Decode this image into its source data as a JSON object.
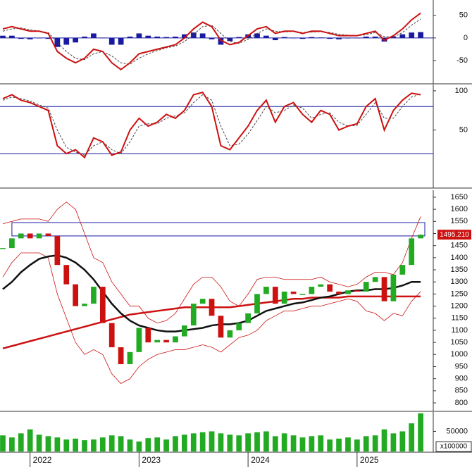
{
  "chart_data": [
    {
      "type": "line",
      "xlim": [
        0,
        47
      ],
      "ylim": [
        -100,
        84
      ],
      "yticks": [
        -50,
        0,
        50
      ],
      "levels": [
        0
      ],
      "level_color": "#1a1aa0",
      "series": [
        {
          "kind": "bar",
          "color": "#1a1aa0",
          "values": [
            5,
            5,
            -2,
            -3,
            0,
            -2,
            -20,
            -15,
            -10,
            3,
            10,
            0,
            -15,
            -15,
            3,
            10,
            5,
            3,
            2,
            3,
            8,
            12,
            10,
            -3,
            -15,
            -7,
            2,
            8,
            10,
            5,
            -5,
            2,
            0,
            -2,
            2,
            1,
            -2,
            -3,
            -1,
            0,
            3,
            3,
            -8,
            3,
            8,
            12,
            13
          ]
        },
        {
          "kind": "line",
          "color": "#444444",
          "dash": true,
          "width": 1,
          "values": [
            15,
            20,
            22,
            18,
            15,
            12,
            -10,
            -30,
            -45,
            -48,
            -35,
            -30,
            -40,
            -55,
            -58,
            -45,
            -35,
            -28,
            -22,
            -18,
            -8,
            8,
            25,
            28,
            10,
            -8,
            -12,
            -3,
            10,
            20,
            15,
            13,
            15,
            12,
            13,
            14,
            12,
            8,
            6,
            5,
            7,
            12,
            3,
            2,
            12,
            28,
            42
          ]
        },
        {
          "kind": "line",
          "color": "#cc1111",
          "dash": false,
          "width": 2,
          "values": [
            20,
            25,
            20,
            15,
            15,
            10,
            -30,
            -45,
            -55,
            -45,
            -25,
            -30,
            -55,
            -70,
            -55,
            -35,
            -30,
            -25,
            -20,
            -15,
            0,
            20,
            35,
            25,
            -5,
            -15,
            -10,
            5,
            20,
            25,
            10,
            15,
            15,
            10,
            15,
            15,
            10,
            5,
            5,
            5,
            10,
            15,
            -5,
            5,
            20,
            40,
            55
          ]
        }
      ]
    },
    {
      "type": "line",
      "xlim": [
        0,
        47
      ],
      "ylim": [
        -23,
        108
      ],
      "yticks": [
        50,
        100
      ],
      "levels": [
        20,
        80
      ],
      "level_color": "#1a1aa0",
      "series": [
        {
          "kind": "line",
          "color": "#444444",
          "dash": true,
          "width": 1,
          "values": [
            88,
            92,
            90,
            87,
            82,
            78,
            50,
            28,
            22,
            18,
            30,
            35,
            25,
            20,
            35,
            55,
            58,
            58,
            65,
            68,
            72,
            85,
            95,
            88,
            55,
            30,
            32,
            45,
            62,
            80,
            72,
            75,
            82,
            78,
            65,
            70,
            72,
            60,
            55,
            56,
            70,
            85,
            65,
            65,
            80,
            92,
            96
          ]
        },
        {
          "kind": "line",
          "color": "#cc1111",
          "dash": false,
          "width": 2,
          "values": [
            90,
            95,
            88,
            85,
            80,
            75,
            30,
            20,
            25,
            15,
            40,
            35,
            18,
            22,
            50,
            65,
            55,
            60,
            70,
            65,
            75,
            95,
            98,
            80,
            30,
            25,
            40,
            55,
            75,
            88,
            60,
            80,
            85,
            70,
            60,
            75,
            70,
            50,
            55,
            58,
            80,
            90,
            50,
            75,
            88,
            97,
            95
          ]
        }
      ]
    },
    {
      "type": "candlestick",
      "xlim": [
        0,
        47
      ],
      "ylim": [
        768,
        1679
      ],
      "yticks": [
        800,
        850,
        900,
        950,
        1000,
        1050,
        1100,
        1150,
        1200,
        1250,
        1300,
        1350,
        1400,
        1450,
        1500,
        1550,
        1600,
        1650
      ],
      "highlight_range": [
        1490,
        1545
      ],
      "last_price": {
        "value": 1495.21,
        "label": "1495.210"
      },
      "series": [
        {
          "kind": "line",
          "color": "#cc1111",
          "dash": false,
          "width": 0.8,
          "values": [
            1540,
            1550,
            1560,
            1560,
            1560,
            1550,
            1600,
            1630,
            1600,
            1500,
            1400,
            1380,
            1300,
            1250,
            1200,
            1200,
            1150,
            1130,
            1140,
            1170,
            1230,
            1290,
            1320,
            1320,
            1280,
            1220,
            1200,
            1250,
            1310,
            1320,
            1320,
            1310,
            1310,
            1310,
            1310,
            1320,
            1300,
            1290,
            1280,
            1290,
            1320,
            1340,
            1340,
            1330,
            1380,
            1480,
            1570
          ]
        },
        {
          "kind": "line",
          "color": "#cc1111",
          "dash": false,
          "width": 0.8,
          "values": [
            1320,
            1380,
            1420,
            1420,
            1420,
            1400,
            1250,
            1150,
            1050,
            1000,
            1020,
            1000,
            920,
            880,
            900,
            950,
            980,
            1000,
            1010,
            1020,
            1020,
            1030,
            1040,
            1030,
            1010,
            1040,
            1070,
            1080,
            1100,
            1140,
            1160,
            1180,
            1180,
            1190,
            1200,
            1200,
            1210,
            1220,
            1230,
            1220,
            1180,
            1170,
            1140,
            1170,
            1160,
            1220,
            1260
          ]
        },
        {
          "kind": "line",
          "color": "#cc1111",
          "dash": false,
          "width": 2.5,
          "values": [
            1025,
            1035,
            1045,
            1055,
            1065,
            1075,
            1085,
            1095,
            1105,
            1115,
            1125,
            1135,
            1145,
            1155,
            1165,
            1170,
            1175,
            1180,
            1185,
            1190,
            1195,
            1195,
            1195,
            1195,
            1195,
            1195,
            1200,
            1205,
            1210,
            1215,
            1220,
            1225,
            1230,
            1230,
            1235,
            1235,
            1235,
            1235,
            1240,
            1240,
            1240,
            1240,
            1240,
            1240,
            1240,
            1240,
            1240
          ]
        },
        {
          "kind": "line",
          "color": "#111111",
          "dash": false,
          "width": 2.5,
          "values": [
            1270,
            1300,
            1340,
            1370,
            1395,
            1405,
            1410,
            1400,
            1380,
            1350,
            1310,
            1260,
            1210,
            1170,
            1140,
            1120,
            1110,
            1100,
            1095,
            1095,
            1100,
            1105,
            1110,
            1120,
            1125,
            1125,
            1130,
            1140,
            1160,
            1180,
            1190,
            1200,
            1210,
            1215,
            1225,
            1235,
            1240,
            1250,
            1260,
            1265,
            1265,
            1270,
            1270,
            1275,
            1285,
            1300,
            1300
          ]
        },
        {
          "kind": "candle",
          "color": "#22aa22",
          "down_color": "#cc1111",
          "values": [
            1440,
            1480,
            1500,
            1480,
            1500,
            1490,
            1370,
            1290,
            1200,
            1210,
            1280,
            1130,
            1030,
            960,
            1010,
            1110,
            1050,
            1060,
            1050,
            1075,
            1120,
            1210,
            1230,
            1160,
            1070,
            1100,
            1130,
            1170,
            1250,
            1280,
            1210,
            1260,
            1250,
            1250,
            1280,
            1290,
            1260,
            1250,
            1265,
            1260,
            1300,
            1320,
            1220,
            1330,
            1370,
            1480,
            1495
          ]
        }
      ]
    },
    {
      "type": "bar",
      "xlim": [
        0,
        47
      ],
      "ylim": [
        0,
        98000
      ],
      "yticks": [
        50000
      ],
      "unit_label": "x100000",
      "xticks": [
        {
          "value": 3,
          "label": "2022"
        },
        {
          "value": 15,
          "label": "2023"
        },
        {
          "value": 27,
          "label": "2024"
        },
        {
          "value": 39,
          "label": "2025"
        }
      ],
      "series": [
        {
          "kind": "bar",
          "color": "#22aa22",
          "values": [
            40000,
            35000,
            45000,
            55000,
            42000,
            38000,
            35000,
            30000,
            32000,
            28000,
            30000,
            35000,
            40000,
            38000,
            30000,
            25000,
            33000,
            35000,
            30000,
            38000,
            42000,
            45000,
            48000,
            50000,
            45000,
            42000,
            40000,
            45000,
            48000,
            50000,
            38000,
            45000,
            40000,
            35000,
            38000,
            40000,
            30000,
            32000,
            35000,
            30000,
            38000,
            40000,
            55000,
            45000,
            50000,
            70000,
            95000
          ]
        }
      ]
    }
  ]
}
